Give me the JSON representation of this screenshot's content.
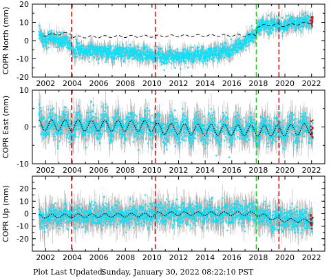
{
  "footer": {
    "label": "Plot Last Updated:",
    "timestamp": "Sunday, January 30, 2022 08:22:10 PST"
  },
  "colors": {
    "data": "#00e5ff",
    "error_bars": "#b0b0b0",
    "model": "#000000",
    "recent": "#e00000",
    "event_red": "#ff0000",
    "event_green": "#22cc22"
  },
  "events": [
    {
      "x": 2003.95,
      "color": "red"
    },
    {
      "x": 2010.25,
      "color": "red"
    },
    {
      "x": 2017.85,
      "color": "green"
    },
    {
      "x": 2019.55,
      "color": "red"
    }
  ],
  "chart_data": [
    {
      "type": "scatter",
      "ylabel": "COPR North (mm)",
      "xlim": [
        2001,
        2023
      ],
      "ylim": [
        -20,
        20
      ],
      "xticks": [
        2002,
        2004,
        2006,
        2008,
        2010,
        2012,
        2014,
        2016,
        2018,
        2020,
        2022
      ],
      "yticks": [
        -20,
        -10,
        0,
        10,
        20
      ],
      "model_style": "dashed",
      "trend": [
        [
          2001.5,
          2
        ],
        [
          2003.9,
          -1
        ],
        [
          2004.0,
          -5
        ],
        [
          2010.2,
          -8
        ],
        [
          2010.3,
          -9
        ],
        [
          2014,
          -8
        ],
        [
          2016,
          -5
        ],
        [
          2017.8,
          3
        ],
        [
          2017.9,
          7
        ],
        [
          2019.5,
          9
        ],
        [
          2019.6,
          8
        ],
        [
          2022.1,
          11
        ]
      ],
      "model": [
        [
          2001.8,
          3
        ],
        [
          2003.9,
          4
        ],
        [
          2004.1,
          2
        ],
        [
          2017.8,
          3
        ],
        [
          2017.95,
          8
        ],
        [
          2019.5,
          9
        ],
        [
          2019.6,
          8
        ],
        [
          2022.1,
          10
        ]
      ],
      "seasonal_amp": 0.6,
      "scatter": 2.0,
      "error_bar": 3.5
    },
    {
      "type": "scatter",
      "ylabel": "COPR East (mm)",
      "xlim": [
        2001,
        2023
      ],
      "ylim": [
        -10,
        10
      ],
      "xticks": [
        2002,
        2004,
        2006,
        2008,
        2010,
        2012,
        2014,
        2016,
        2018,
        2020,
        2022
      ],
      "yticks": [
        -10,
        0,
        10
      ],
      "model_style": "dotted",
      "trend": [
        [
          2001.5,
          0.5
        ],
        [
          2010.2,
          0.2
        ],
        [
          2010.4,
          -0.5
        ],
        [
          2017.8,
          -1
        ],
        [
          2019.5,
          -1
        ],
        [
          2022.1,
          -0.5
        ]
      ],
      "model": [
        [
          2001.5,
          0.5
        ],
        [
          2010.2,
          0.2
        ],
        [
          2010.4,
          -0.5
        ],
        [
          2017.8,
          -1
        ],
        [
          2019.5,
          -1
        ],
        [
          2022.1,
          -0.5
        ]
      ],
      "seasonal_amp": 1.5,
      "scatter": 1.8,
      "error_bar": 3.2
    },
    {
      "type": "scatter",
      "ylabel": "COPR Up (mm)",
      "xlim": [
        2001,
        2023
      ],
      "ylim": [
        -30,
        30
      ],
      "xticks": [
        2002,
        2004,
        2006,
        2008,
        2010,
        2012,
        2014,
        2016,
        2018,
        2020,
        2022
      ],
      "yticks": [
        -20,
        -10,
        0,
        10,
        20
      ],
      "model_style": "dotted",
      "trend": [
        [
          2001.5,
          -2
        ],
        [
          2010.2,
          -1
        ],
        [
          2010.4,
          0
        ],
        [
          2017.8,
          0
        ],
        [
          2019.5,
          -5
        ],
        [
          2022.1,
          -6
        ]
      ],
      "model": [
        [
          2001.5,
          -2
        ],
        [
          2010.2,
          -1
        ],
        [
          2010.4,
          0
        ],
        [
          2017.8,
          0
        ],
        [
          2019.5,
          -5
        ],
        [
          2022.1,
          -6
        ]
      ],
      "seasonal_amp": 1.5,
      "scatter": 4.5,
      "error_bar": 9
    }
  ]
}
